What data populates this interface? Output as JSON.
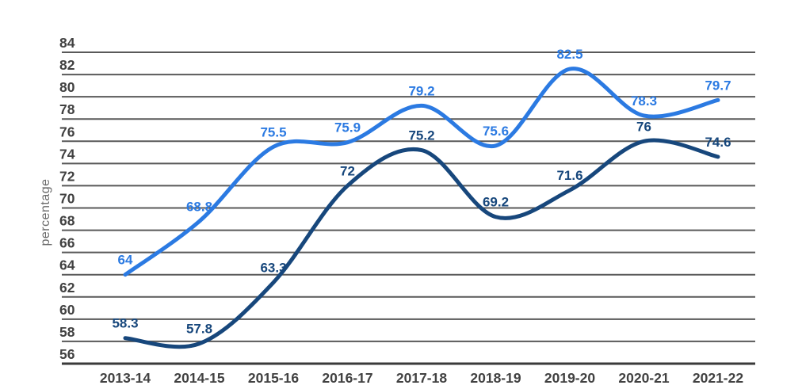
{
  "chart_data": {
    "type": "line",
    "title": "",
    "xlabel": "",
    "ylabel": "percentage",
    "categories": [
      "2013-14",
      "2014-15",
      "2015-16",
      "2016-17",
      "2017-18",
      "2018-19",
      "2019-20",
      "2020-21",
      "2021-22"
    ],
    "series": [
      {
        "id": "upper-line",
        "color": "#2b7ae2",
        "values": [
          64,
          68.8,
          75.5,
          75.9,
          79.2,
          75.6,
          82.5,
          78.3,
          79.7
        ]
      },
      {
        "id": "lower-line",
        "color": "#17477c",
        "values": [
          58.3,
          57.8,
          63.3,
          72,
          75.2,
          69.2,
          71.6,
          76,
          74.6
        ]
      }
    ],
    "y_ticks": [
      84,
      82,
      80,
      78,
      76,
      74,
      72,
      70,
      68,
      66,
      64,
      62,
      60,
      58,
      56
    ],
    "ylim": [
      56,
      84
    ],
    "grid": true,
    "legend_position": "none",
    "data_labels": true
  },
  "colors": {
    "background": "#ffffff",
    "gridline": "#595959",
    "baseline": "#3a3a3a",
    "tick_text": "#414141",
    "axis_title_text": "#6b6b6b"
  }
}
